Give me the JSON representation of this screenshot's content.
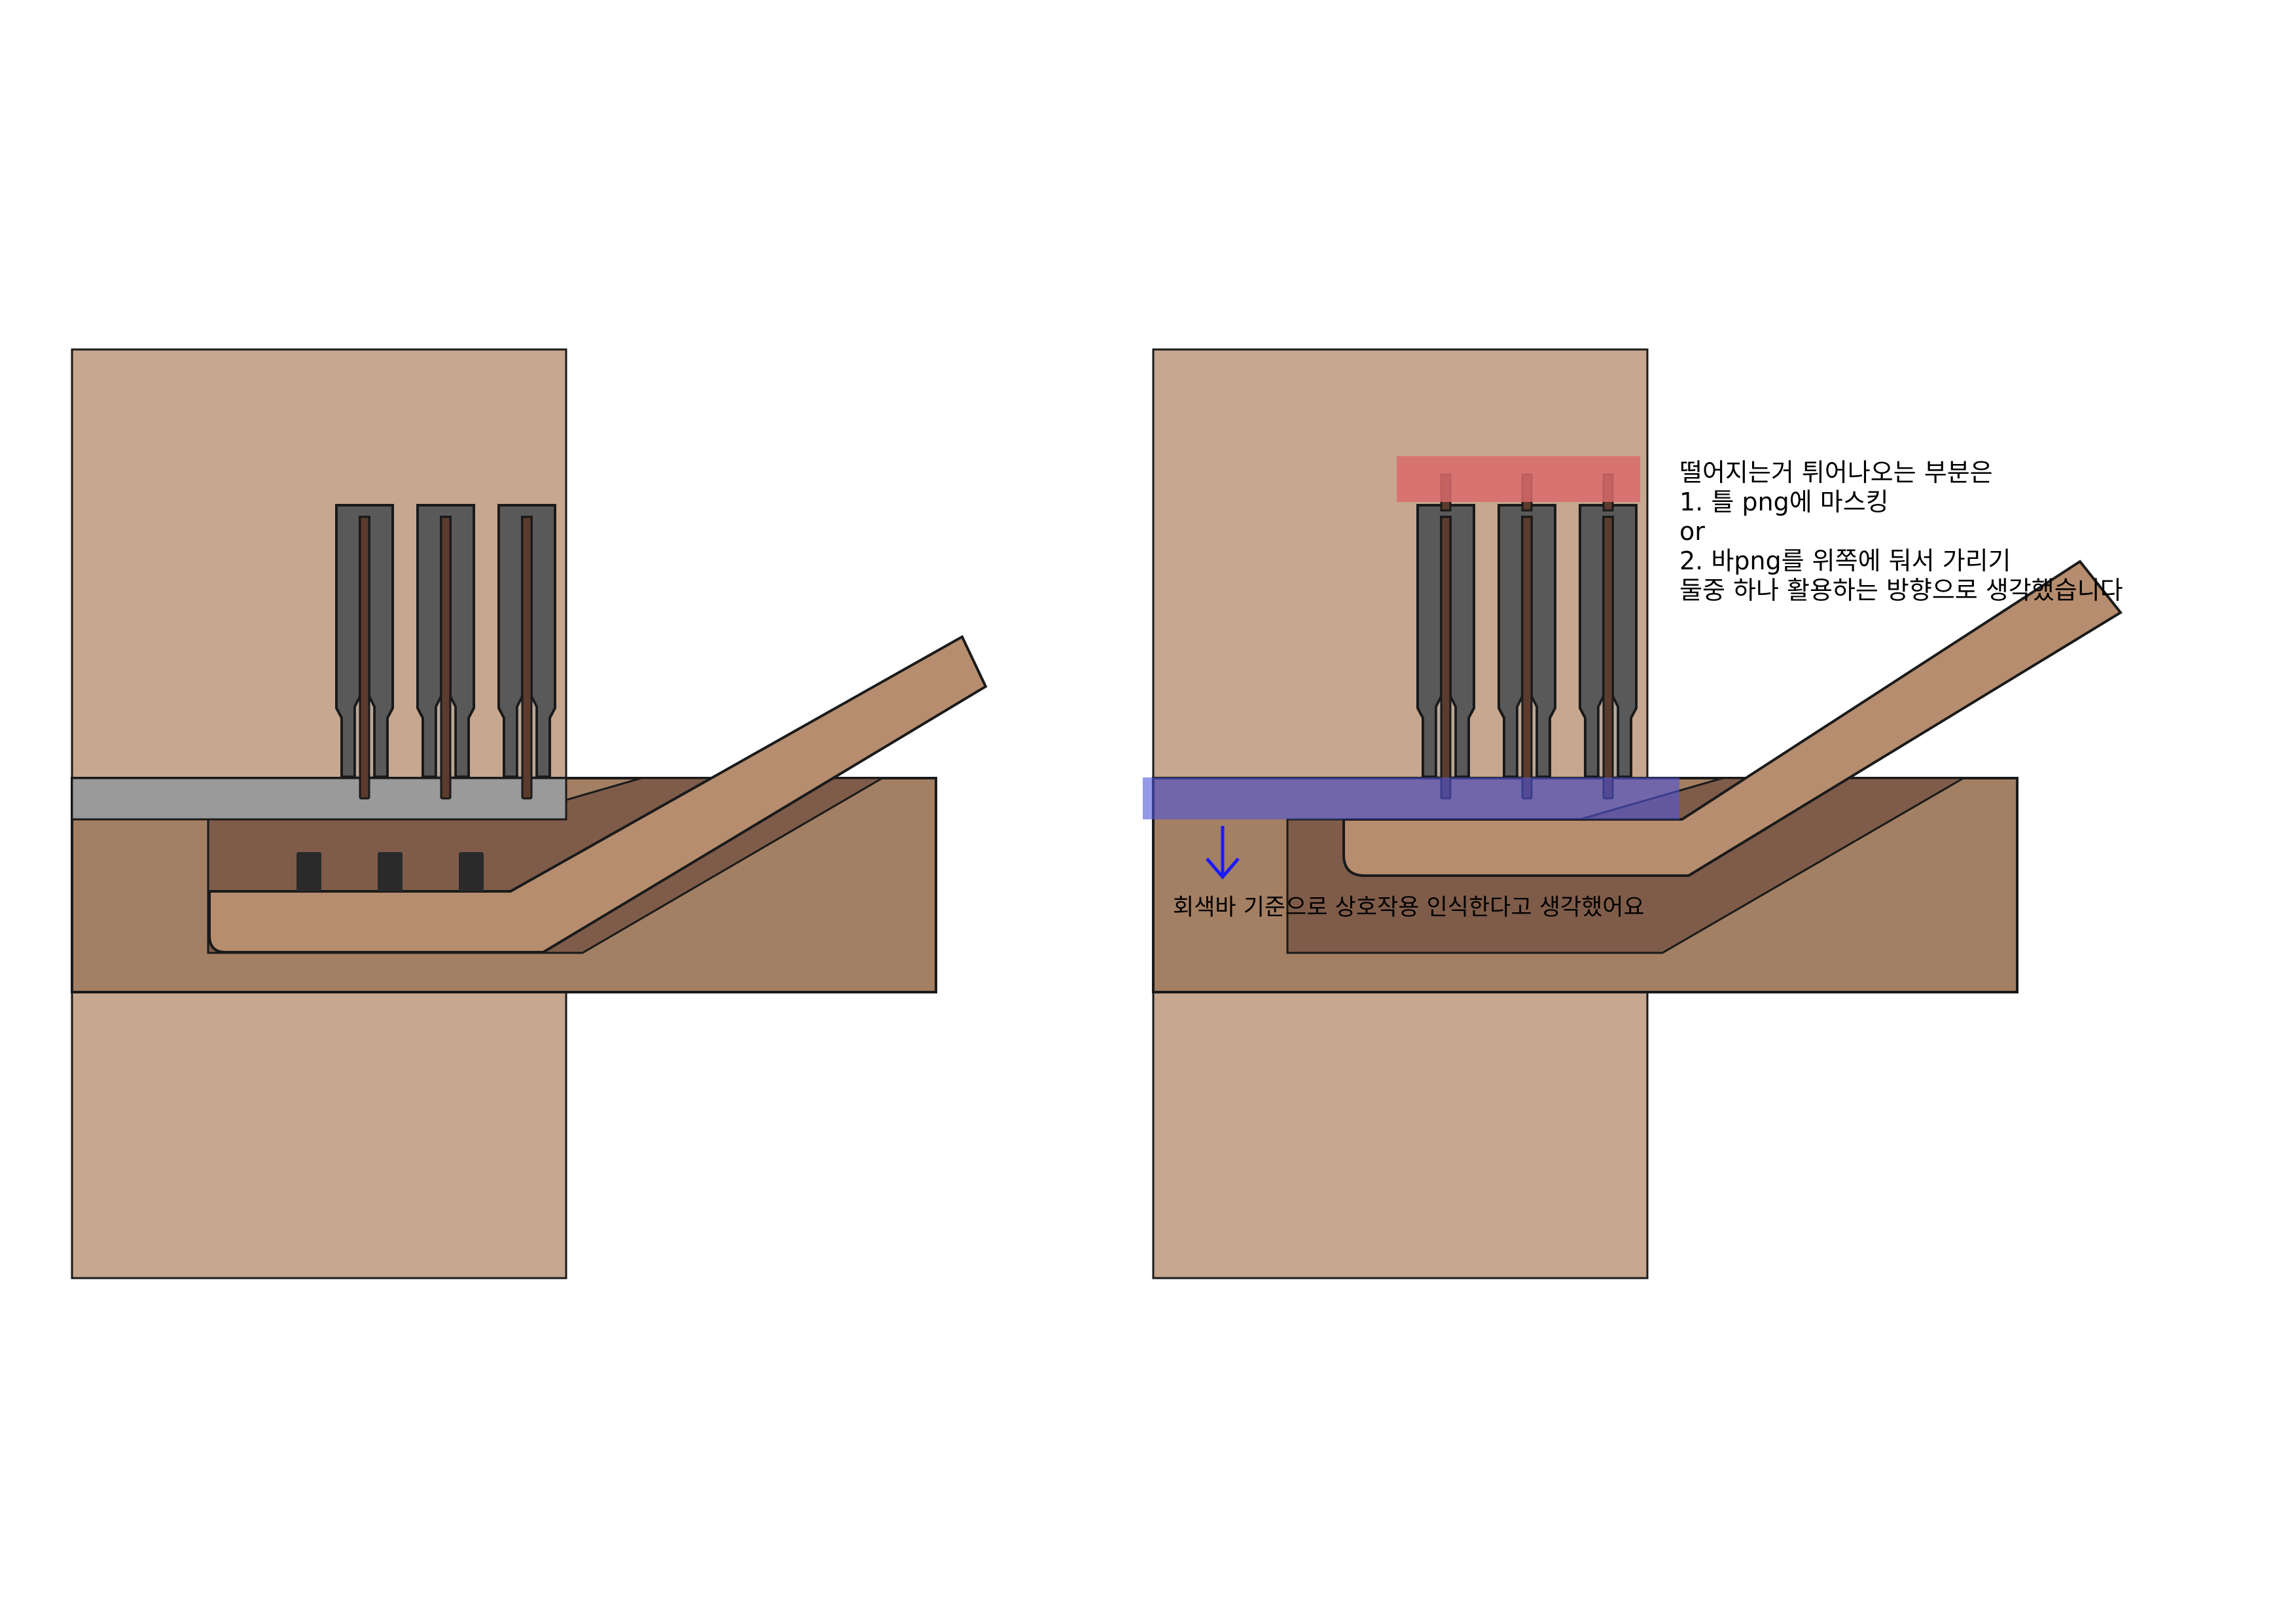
{
  "notes": {
    "masking": {
      "lines": [
        "떨어지는거 튀어나오는 부분은",
        "1. 틀 png에 마스킹",
        "or",
        "2. 바png를 위쪽에 둬서 가리기",
        "둘중 하나 활용하는 방향으로 생각했습니다"
      ]
    },
    "interaction": {
      "text": "회색바 기준으로 상호작용 인식한다고 생각했어요"
    }
  },
  "colors": {
    "background": "#ffffff",
    "wall": "#c6a78f",
    "tray": "#a37f63",
    "tray_shadow": "#7f5c49",
    "ramp": "#b68d6e",
    "gray_bar": "#9a9a9a",
    "pin_frame": "#595959",
    "pin_rod": "#5a3b2d",
    "post": "#2a2a2a",
    "mask_highlight": "#d96b6b",
    "bar_highlight": "#5055d8",
    "arrow": "#1a1aff"
  },
  "icons": {
    "arrow": "arrow-down-icon"
  }
}
